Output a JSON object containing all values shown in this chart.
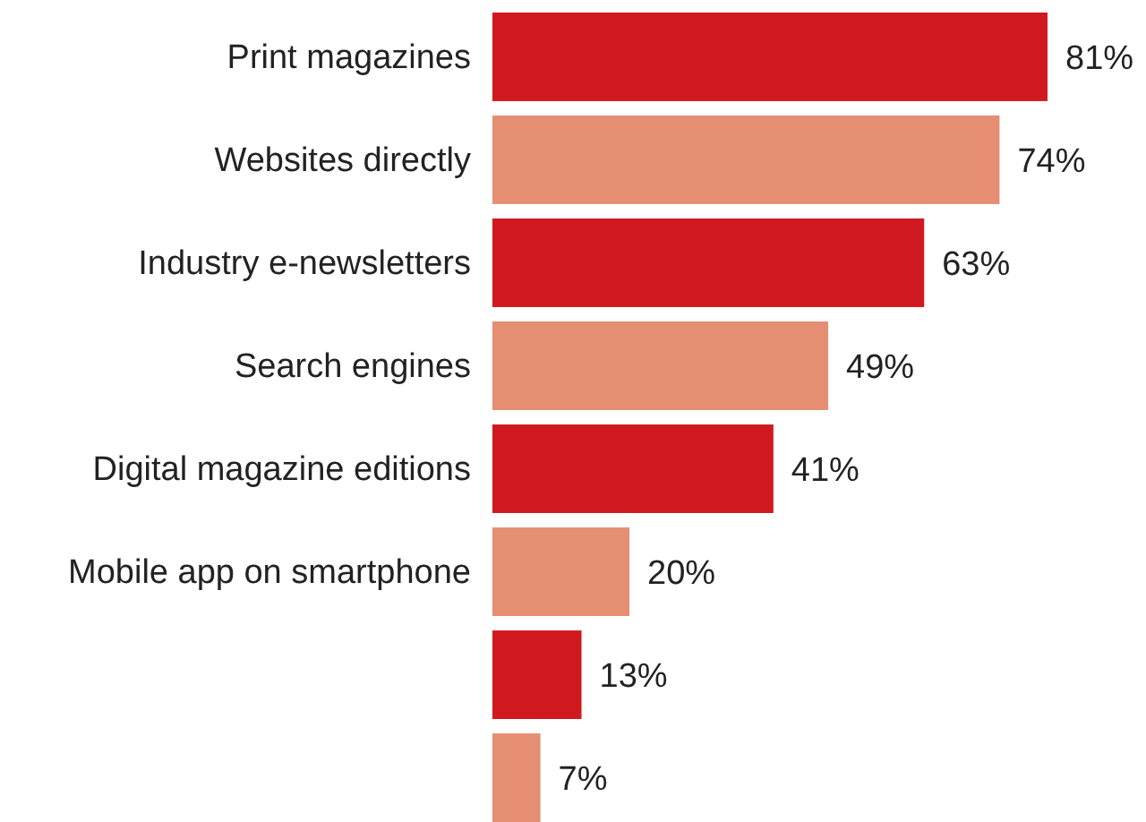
{
  "chart_data": {
    "type": "bar",
    "orientation": "horizontal",
    "categories": [
      "Print magazines",
      "Websites directly",
      "Industry e-newsletters",
      "Search engines",
      "Digital magazine editions",
      "Mobile app on smartphone",
      null,
      null
    ],
    "values": [
      81,
      74,
      63,
      49,
      41,
      20,
      13,
      7
    ],
    "colors": [
      "#d0191e",
      "#e58e72",
      "#d0191e",
      "#e58e72",
      "#d0191e",
      "#e58e72",
      "#d0191e",
      "#e58e72"
    ],
    "value_labels": [
      "81%",
      "74%",
      "63%",
      "49%",
      "41%",
      "20%",
      "13%",
      "7%"
    ]
  }
}
